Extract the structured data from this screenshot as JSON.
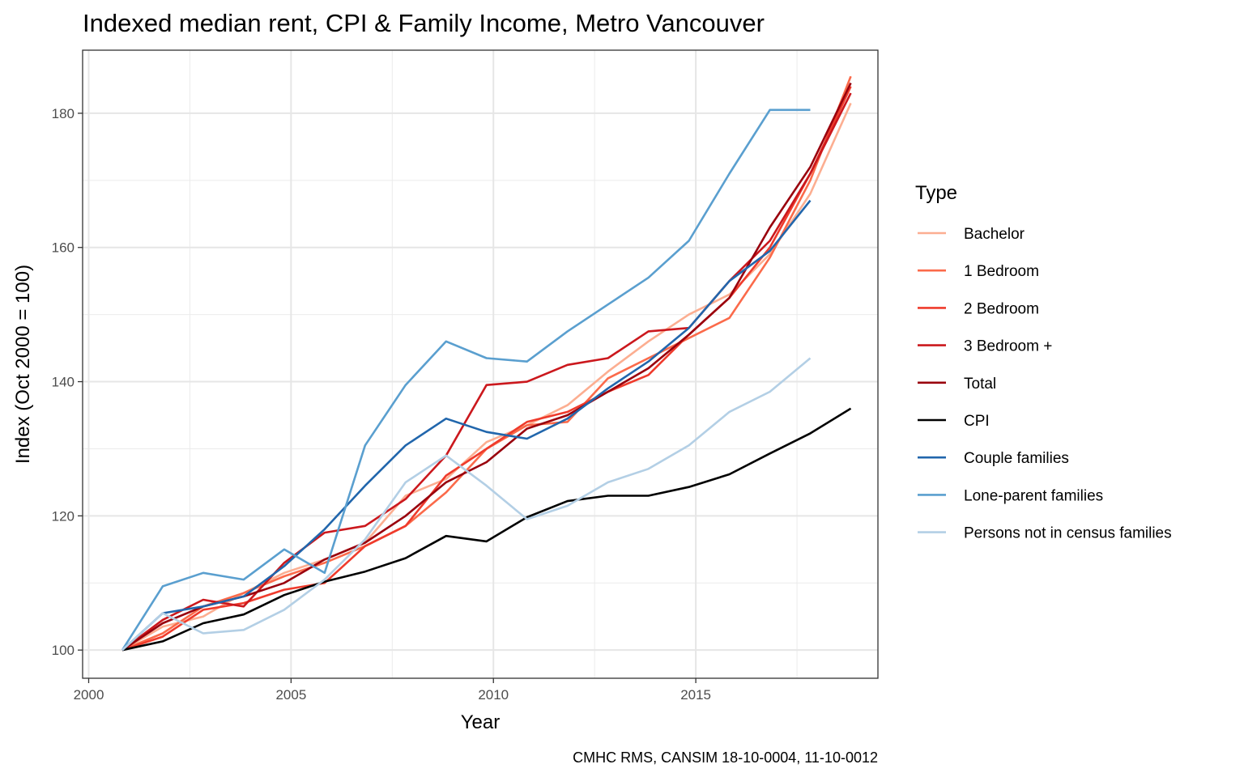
{
  "chart_data": {
    "type": "line",
    "title": "Indexed median rent, CPI & Family Income, Metro Vancouver",
    "xlabel": "Year",
    "ylabel": "Index (Oct 2000 = 100)",
    "caption": "CMHC RMS, CANSIM 18-10-0004, 11-10-0012",
    "xlim": [
      1999.85,
      2019.5
    ],
    "ylim": [
      95.8,
      189.4
    ],
    "x_ticks": [
      2000,
      2005,
      2010,
      2015
    ],
    "x_tick_labels": [
      "2000",
      "2005",
      "2010",
      "2015"
    ],
    "y_ticks": [
      100,
      120,
      140,
      160,
      180
    ],
    "y_tick_labels": [
      "100",
      "120",
      "140",
      "160",
      "180"
    ],
    "grid": true,
    "legend": {
      "title": "Type",
      "position": "right"
    },
    "series": [
      {
        "name": "Bachelor",
        "color": "#fcae91",
        "x": [
          2000.83,
          2001.83,
          2002.83,
          2003.83,
          2004.83,
          2005.83,
          2006.83,
          2007.83,
          2008.83,
          2009.83,
          2010.83,
          2011.83,
          2012.83,
          2013.83,
          2014.83,
          2015.83,
          2016.83,
          2017.83,
          2018.83
        ],
        "y": [
          100,
          103.5,
          105,
          108.5,
          111.5,
          113.5,
          116,
          123,
          125.5,
          131,
          133.5,
          136.5,
          141.5,
          146,
          150,
          153,
          159,
          168,
          181.5
        ]
      },
      {
        "name": "1 Bedroom",
        "color": "#fb6a4a",
        "x": [
          2000.83,
          2001.83,
          2002.83,
          2003.83,
          2004.83,
          2005.83,
          2006.83,
          2007.83,
          2008.83,
          2009.83,
          2010.83,
          2011.83,
          2012.83,
          2013.83,
          2014.83,
          2015.83,
          2016.83,
          2017.83,
          2018.83
        ],
        "y": [
          100,
          102.5,
          106.5,
          108.5,
          111,
          113,
          115.5,
          118.5,
          123.5,
          130,
          133.5,
          134,
          140.5,
          143.5,
          146.5,
          149.5,
          158.5,
          170,
          185.5
        ]
      },
      {
        "name": "2 Bedroom",
        "color": "#ef3b2c",
        "x": [
          2000.83,
          2001.83,
          2002.83,
          2003.83,
          2004.83,
          2005.83,
          2006.83,
          2007.83,
          2008.83,
          2009.83,
          2010.83,
          2011.83,
          2012.83,
          2013.83,
          2014.83,
          2015.83,
          2016.83,
          2017.83,
          2018.83
        ],
        "y": [
          100,
          102,
          106,
          107,
          109,
          110,
          115.5,
          118.5,
          126,
          130,
          134,
          135.5,
          138.5,
          141,
          147,
          152.5,
          160,
          171,
          184
        ]
      },
      {
        "name": "3 Bedroom +",
        "color": "#cb181d",
        "x": [
          2000.83,
          2001.83,
          2002.83,
          2003.83,
          2004.83,
          2005.83,
          2006.83,
          2007.83,
          2008.83,
          2009.83,
          2010.83,
          2011.83,
          2012.83,
          2013.83,
          2014.83,
          2015.83,
          2016.83,
          2017.83,
          2018.83
        ],
        "y": [
          100,
          104.5,
          107.5,
          106.5,
          113,
          117.5,
          118.5,
          122.5,
          129,
          139.5,
          140,
          142.5,
          143.5,
          147.5,
          148,
          155,
          161,
          171,
          183
        ]
      },
      {
        "name": "Total",
        "color": "#99000d",
        "x": [
          2000.83,
          2001.83,
          2002.83,
          2003.83,
          2004.83,
          2005.83,
          2006.83,
          2007.83,
          2008.83,
          2009.83,
          2010.83,
          2011.83,
          2012.83,
          2013.83,
          2014.83,
          2015.83,
          2016.83,
          2017.83,
          2018.83
        ],
        "y": [
          100,
          104,
          106.5,
          108,
          110,
          113.5,
          116,
          120,
          125,
          128,
          133,
          135,
          138.5,
          142,
          147,
          152.5,
          163,
          172,
          184.5
        ]
      },
      {
        "name": "CPI",
        "color": "#000000",
        "x": [
          2000.83,
          2001.83,
          2002.83,
          2003.83,
          2004.83,
          2005.83,
          2006.83,
          2007.83,
          2008.83,
          2009.83,
          2010.83,
          2011.83,
          2012.83,
          2013.83,
          2014.83,
          2015.83,
          2016.83,
          2017.83,
          2018.83
        ],
        "y": [
          100,
          101.3,
          104,
          105.3,
          108.2,
          110.2,
          111.7,
          113.7,
          117,
          116.2,
          119.8,
          122.2,
          123,
          123,
          124.3,
          126.2,
          129.3,
          132.3,
          136
        ]
      },
      {
        "name": "Couple families",
        "color": "#2166ac",
        "x": [
          2000.83,
          2001.83,
          2002.83,
          2003.83,
          2004.83,
          2005.83,
          2006.83,
          2007.83,
          2008.83,
          2009.83,
          2010.83,
          2011.83,
          2012.83,
          2013.83,
          2014.83,
          2015.83,
          2016.83,
          2017.83
        ],
        "y": [
          100,
          105.5,
          106.5,
          108,
          112.5,
          118,
          124.5,
          130.5,
          134.5,
          132.5,
          131.5,
          134.5,
          139,
          143,
          148,
          155,
          159.5,
          167
        ]
      },
      {
        "name": "Lone-parent families",
        "color": "#5a9fcf",
        "x": [
          2000.83,
          2001.83,
          2002.83,
          2003.83,
          2004.83,
          2005.83,
          2006.83,
          2007.83,
          2008.83,
          2009.83,
          2010.83,
          2011.83,
          2012.83,
          2013.83,
          2014.83,
          2015.83,
          2016.83,
          2017.83
        ],
        "y": [
          100,
          109.5,
          111.5,
          110.5,
          115,
          111.5,
          130.5,
          139.5,
          146,
          143.5,
          143,
          147.5,
          151.5,
          155.5,
          161,
          171,
          180.5,
          180.5
        ]
      },
      {
        "name": "Persons not in census families",
        "color": "#b3cfe5",
        "x": [
          2000.83,
          2001.83,
          2002.83,
          2003.83,
          2004.83,
          2005.83,
          2006.83,
          2007.83,
          2008.83,
          2009.83,
          2010.83,
          2011.83,
          2012.83,
          2013.83,
          2014.83,
          2015.83,
          2016.83,
          2017.83
        ],
        "y": [
          100,
          105.5,
          102.5,
          103,
          106,
          110.5,
          116.5,
          125,
          129,
          124.5,
          119.5,
          121.5,
          125,
          127,
          130.5,
          135.5,
          138.5,
          143.5
        ]
      }
    ]
  }
}
